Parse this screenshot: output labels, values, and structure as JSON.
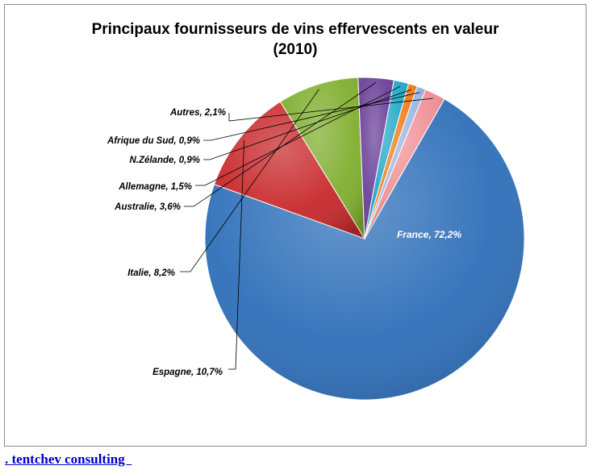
{
  "chart_data": {
    "type": "pie",
    "title": "Principaux fournisseurs de vins effervescents en valeur\n(2010)",
    "unit": "%",
    "slices": [
      {
        "name": "France",
        "value": 72.2,
        "label": "France, 72,2%",
        "color": "#2e6fb9"
      },
      {
        "name": "Espagne",
        "value": 10.7,
        "label": "Espagne, 10,7%",
        "color": "#c8282b"
      },
      {
        "name": "Italie",
        "value": 8.2,
        "label": "Italie, 8,2%",
        "color": "#7fae2e"
      },
      {
        "name": "Australie",
        "value": 3.6,
        "label": "Australie, 3,6%",
        "color": "#6a3f98"
      },
      {
        "name": "Allemagne",
        "value": 1.5,
        "label": "Allemagne, 1,5%",
        "color": "#1fa8c7"
      },
      {
        "name": "N.Zélande",
        "value": 0.9,
        "label": "N.Zélande, 0,9%",
        "color": "#f07d18"
      },
      {
        "name": "Afrique du Sud",
        "value": 0.9,
        "label": "Afrique du Sud, 0,9%",
        "color": "#9ab7e4"
      },
      {
        "name": "Autres",
        "value": 2.1,
        "label": "Autres, 2,1%",
        "color": "#ef8f94"
      }
    ]
  },
  "footer": {
    "link_text": ". tentchev consulting  "
  }
}
